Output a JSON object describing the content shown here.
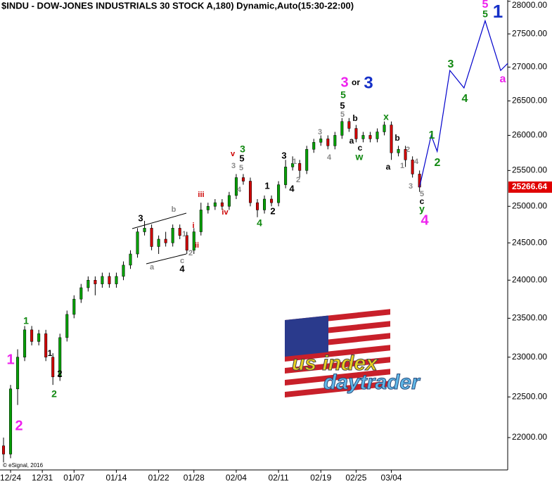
{
  "chart_data": {
    "type": "candlestick",
    "title": "$INDU - DOW-JONES INDUSTRIALS 30 STOCK A,180) Dynamic,Auto(15:30-22:00)",
    "log_scale": true,
    "grid": false,
    "up_color": "#00a000",
    "down_color": "#d00000",
    "wick_color": "#000000",
    "xlim": [
      0,
      144
    ],
    "xticks": [
      {
        "value": 3,
        "label": "12/24"
      },
      {
        "value": 12,
        "label": "12/31"
      },
      {
        "value": 21,
        "label": "01/07"
      },
      {
        "value": 33,
        "label": "01/14"
      },
      {
        "value": 45,
        "label": "01/22"
      },
      {
        "value": 55,
        "label": "01/28"
      },
      {
        "value": 67,
        "label": "02/04"
      },
      {
        "value": 79,
        "label": "02/11"
      },
      {
        "value": 91,
        "label": "02/19"
      },
      {
        "value": 101,
        "label": "02/25"
      },
      {
        "value": 111,
        "label": "03/04"
      }
    ],
    "ylim": [
      21610,
      28020
    ],
    "yticks": [
      {
        "value": 22000,
        "label": "22000.00"
      },
      {
        "value": 22500,
        "label": "22500.00"
      },
      {
        "value": 23000,
        "label": "23000.00"
      },
      {
        "value": 23500,
        "label": "23500.00"
      },
      {
        "value": 24000,
        "label": "24000.00"
      },
      {
        "value": 24500,
        "label": "24500.00"
      },
      {
        "value": 25000,
        "label": "25000.00"
      },
      {
        "value": 25500,
        "label": "25500.00"
      },
      {
        "value": 26000,
        "label": "26000.00"
      },
      {
        "value": 26500,
        "label": "26500.00"
      },
      {
        "value": 27000,
        "label": "27000.00"
      },
      {
        "value": 27500,
        "label": "27500.00"
      },
      {
        "value": 28000,
        "label": "28000.00"
      }
    ],
    "x": [
      1,
      3,
      5,
      7,
      9,
      11,
      13,
      15,
      17,
      19,
      21,
      23,
      25,
      27,
      29,
      31,
      33,
      35,
      37,
      39,
      41,
      43,
      45,
      47,
      49,
      51,
      53,
      55,
      57,
      59,
      61,
      63,
      65,
      67,
      69,
      71,
      73,
      75,
      77,
      79,
      81,
      83,
      85,
      87,
      89,
      91,
      93,
      95,
      97,
      99,
      101,
      103,
      105,
      107,
      109,
      111,
      113,
      115,
      117,
      119
    ],
    "open": [
      21900,
      21800,
      22600,
      23000,
      23350,
      23200,
      23300,
      23000,
      22750,
      23250,
      23550,
      23750,
      23900,
      24000,
      23950,
      24050,
      23950,
      24050,
      24200,
      24350,
      24650,
      24700,
      24450,
      24550,
      24500,
      24700,
      24600,
      24400,
      24650,
      24950,
      25000,
      25050,
      25000,
      25150,
      25400,
      25350,
      25050,
      24950,
      25100,
      25050,
      25300,
      25550,
      25600,
      25500,
      25800,
      25900,
      25950,
      25850,
      26000,
      26200,
      26100,
      25950,
      26000,
      25950,
      26050,
      26150,
      25750,
      25800,
      25650,
      25450
    ],
    "high": [
      22000,
      22650,
      23100,
      23400,
      23400,
      23350,
      23350,
      23050,
      23300,
      23600,
      23800,
      23950,
      24050,
      24050,
      24100,
      24100,
      24100,
      24250,
      24400,
      24700,
      24800,
      24750,
      24600,
      24650,
      24750,
      24750,
      24650,
      24700,
      25050,
      25050,
      25100,
      25100,
      25200,
      25450,
      25450,
      25400,
      25100,
      25150,
      25150,
      25350,
      25650,
      25700,
      25650,
      25850,
      25950,
      26000,
      26000,
      26050,
      26250,
      26250,
      26150,
      26050,
      26050,
      26100,
      26200,
      26200,
      25850,
      25850,
      25700,
      25500
    ],
    "low": [
      21700,
      21750,
      22400,
      22950,
      23150,
      23150,
      22950,
      22650,
      22700,
      23200,
      23500,
      23700,
      23850,
      23800,
      23900,
      23900,
      23900,
      24000,
      24150,
      24300,
      24600,
      24400,
      24350,
      24450,
      24450,
      24550,
      24350,
      24350,
      24600,
      24900,
      24950,
      24950,
      24950,
      25100,
      25300,
      25000,
      24850,
      24900,
      25000,
      25000,
      25250,
      25500,
      25400,
      25450,
      25750,
      25850,
      25800,
      25800,
      25950,
      26050,
      25900,
      25900,
      25900,
      25900,
      26000,
      25650,
      25700,
      25550,
      25400,
      25200
    ],
    "close": [
      21800,
      22600,
      23000,
      23350,
      23200,
      23300,
      23000,
      22750,
      23250,
      23550,
      23750,
      23900,
      24000,
      23950,
      24050,
      23950,
      24050,
      24200,
      24350,
      24650,
      24700,
      24450,
      24550,
      24500,
      24700,
      24600,
      24400,
      24650,
      24950,
      25000,
      25050,
      25000,
      25150,
      25400,
      25350,
      25050,
      24950,
      25100,
      25050,
      25300,
      25550,
      25600,
      25500,
      25800,
      25900,
      25950,
      25850,
      26000,
      26200,
      26100,
      25950,
      26000,
      25950,
      26050,
      26150,
      25750,
      25800,
      25650,
      25450,
      25266.64
    ],
    "last_price": 25266.64,
    "last_price_color": "#e00000",
    "projection": {
      "color": "#0000cc",
      "x": [
        119,
        122.3,
        124,
        127.6,
        131.6,
        137.6,
        142,
        144
      ],
      "values": [
        25270,
        26000,
        25770,
        26950,
        26690,
        27700,
        26950,
        27055
      ]
    },
    "annotations": [
      {
        "text": "1",
        "color": "#ee22ee"
      },
      {
        "text": "2",
        "color": "#ee22ee"
      },
      {
        "text": "1",
        "color": "#118811"
      },
      {
        "text": "2",
        "color": "#118811"
      },
      {
        "text": "1",
        "color": "#000000"
      },
      {
        "text": "2",
        "color": "#000000"
      },
      {
        "text": "3",
        "color": "#000000"
      },
      {
        "text": "a",
        "color": "#888888"
      },
      {
        "text": "b",
        "color": "#888888"
      },
      {
        "text": "c",
        "color": "#888888"
      },
      {
        "text": "4",
        "color": "#000000"
      },
      {
        "text": "1",
        "color": "#888888"
      },
      {
        "text": "2",
        "color": "#888888"
      },
      {
        "text": "i",
        "color": "#cc0000"
      },
      {
        "text": "ii",
        "color": "#cc0000"
      },
      {
        "text": "iii",
        "color": "#cc0000"
      },
      {
        "text": "iv",
        "color": "#cc0000"
      },
      {
        "text": "v",
        "color": "#cc0000"
      },
      {
        "text": "3",
        "color": "#888888"
      },
      {
        "text": "5",
        "color": "#888888"
      },
      {
        "text": "5",
        "color": "#000000"
      },
      {
        "text": "3",
        "color": "#118811"
      },
      {
        "text": "4",
        "color": "#888888"
      },
      {
        "text": "4",
        "color": "#118811"
      },
      {
        "text": "1",
        "color": "#000000"
      },
      {
        "text": "2",
        "color": "#000000"
      },
      {
        "text": "3",
        "color": "#000000"
      },
      {
        "text": "4",
        "color": "#000000"
      },
      {
        "text": "1",
        "color": "#888888"
      },
      {
        "text": "2",
        "color": "#888888"
      },
      {
        "text": "3",
        "color": "#888888"
      },
      {
        "text": "4",
        "color": "#888888"
      },
      {
        "text": "3",
        "color": "#ee22ee"
      },
      {
        "text": "or",
        "color": "#000000"
      },
      {
        "text": "3",
        "color": "#1530c8"
      },
      {
        "text": "5",
        "color": "#118811"
      },
      {
        "text": "5",
        "color": "#000000"
      },
      {
        "text": "5",
        "color": "#888888"
      },
      {
        "text": "b",
        "color": "#000000"
      },
      {
        "text": "a",
        "color": "#000000"
      },
      {
        "text": "c",
        "color": "#000000"
      },
      {
        "text": "w",
        "color": "#118811"
      },
      {
        "text": "x",
        "color": "#118811"
      },
      {
        "text": "b",
        "color": "#000000"
      },
      {
        "text": "2",
        "color": "#888888"
      },
      {
        "text": "1",
        "color": "#888888"
      },
      {
        "text": "a",
        "color": "#000000"
      },
      {
        "text": "4",
        "color": "#888888"
      },
      {
        "text": "3",
        "color": "#888888"
      },
      {
        "text": "5",
        "color": "#888888"
      },
      {
        "text": "c",
        "color": "#000000"
      },
      {
        "text": "y",
        "color": "#118811"
      },
      {
        "text": "4",
        "color": "#ee22ee"
      },
      {
        "text": "1",
        "color": "#118811"
      },
      {
        "text": "2",
        "color": "#118811"
      },
      {
        "text": "3",
        "color": "#118811"
      },
      {
        "text": "4",
        "color": "#118811"
      },
      {
        "text": "5",
        "color": "#ee22ee"
      },
      {
        "text": "5",
        "color": "#118811"
      },
      {
        "text": "1",
        "color": "#1530c8"
      },
      {
        "text": "a",
        "color": "#ee22ee"
      }
    ],
    "copyright": "© eSignal, 2016",
    "logo": {
      "line1": "us index",
      "line2": "daytrader"
    }
  }
}
